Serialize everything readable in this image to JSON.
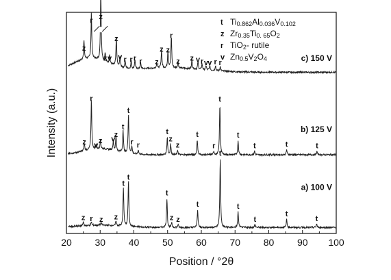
{
  "chart_data": {
    "type": "line",
    "xlabel": "Position / °2θ",
    "ylabel": "Intensity (a.u.)",
    "xlim": [
      20,
      100
    ],
    "xticks": [
      20,
      30,
      40,
      50,
      60,
      70,
      80,
      90,
      100
    ],
    "grid": false,
    "legend_position": "top-right",
    "legend": [
      {
        "key": "t",
        "parts": [
          [
            "Ti",
            ""
          ],
          [
            "0.862",
            "sub"
          ],
          [
            "Al",
            ""
          ],
          [
            "0.036",
            "sub"
          ],
          [
            "V",
            ""
          ],
          [
            "0.102",
            "sub"
          ]
        ]
      },
      {
        "key": "z",
        "parts": [
          [
            "Zr",
            ""
          ],
          [
            "0.35",
            "sub"
          ],
          [
            "Ti",
            ""
          ],
          [
            "0. 65",
            "sub"
          ],
          [
            "O",
            ""
          ],
          [
            "2",
            "sub"
          ]
        ]
      },
      {
        "key": "r",
        "parts": [
          [
            "TiO",
            ""
          ],
          [
            "2",
            "sub"
          ],
          [
            "- rutile",
            ""
          ]
        ]
      },
      {
        "key": "v",
        "parts": [
          [
            "Zn",
            ""
          ],
          [
            "0.5",
            "sub"
          ],
          [
            "V",
            ""
          ],
          [
            "2",
            "sub"
          ],
          [
            "O",
            ""
          ],
          [
            "4",
            "sub"
          ]
        ]
      }
    ],
    "series": [
      {
        "name": "c) 150 V",
        "baseline": 2.15,
        "peaks": [
          {
            "x": 25.2,
            "h": 0.25,
            "label": "z"
          },
          {
            "x": 27.4,
            "h": 0.62,
            "label": "r"
          },
          {
            "x": 30.2,
            "h": 0.95,
            "label": "z"
          },
          {
            "x": 31.5,
            "h": 0.12,
            "label": "z"
          },
          {
            "x": 32.8,
            "h": 0.12,
            "label": "v"
          },
          {
            "x": 34.8,
            "h": 0.38,
            "label": "z"
          },
          {
            "x": 35.9,
            "h": 0.14,
            "label": "v"
          },
          {
            "x": 37.4,
            "h": 0.1,
            "label": "r"
          },
          {
            "x": 39.2,
            "h": 0.1,
            "label": "r"
          },
          {
            "x": 40.3,
            "h": 0.12,
            "label": "r"
          },
          {
            "x": 42.0,
            "h": 0.08,
            "label": "r"
          },
          {
            "x": 46.8,
            "h": 0.07,
            "label": "z"
          },
          {
            "x": 48.2,
            "h": 0.24,
            "label": "z"
          },
          {
            "x": 50.1,
            "h": 0.23,
            "label": "z"
          },
          {
            "x": 51.1,
            "h": 0.42,
            "label": "r"
          },
          {
            "x": 53.1,
            "h": 0.08,
            "label": "z"
          },
          {
            "x": 57.2,
            "h": 0.12,
            "label": "z"
          },
          {
            "x": 59.0,
            "h": 0.1,
            "label": "v"
          },
          {
            "x": 60.2,
            "h": 0.08,
            "label": "r"
          },
          {
            "x": 61.4,
            "h": 0.06,
            "label": "v"
          },
          {
            "x": 62.5,
            "h": 0.06,
            "label": "v"
          },
          {
            "x": 64.2,
            "h": 0.07,
            "label": "r"
          },
          {
            "x": 65.6,
            "h": 0.06,
            "label": "r"
          }
        ]
      },
      {
        "name": "b) 125 V",
        "baseline": 1.05,
        "peaks": [
          {
            "x": 25.3,
            "h": 0.1,
            "label": "z"
          },
          {
            "x": 27.4,
            "h": 0.68,
            "label": "r"
          },
          {
            "x": 28.8,
            "h": 0.06,
            "label": "v"
          },
          {
            "x": 30.1,
            "h": 0.12,
            "label": "z"
          },
          {
            "x": 33.9,
            "h": 0.14,
            "label": "v"
          },
          {
            "x": 34.7,
            "h": 0.2,
            "label": "z"
          },
          {
            "x": 36.8,
            "h": 0.3,
            "label": "t"
          },
          {
            "x": 38.4,
            "h": 0.52,
            "label": "t"
          },
          {
            "x": 39.4,
            "h": 0.1,
            "label": "r"
          },
          {
            "x": 41.3,
            "h": 0.06,
            "label": "r"
          },
          {
            "x": 49.9,
            "h": 0.24,
            "label": "t"
          },
          {
            "x": 50.9,
            "h": 0.14,
            "label": "z"
          },
          {
            "x": 53.0,
            "h": 0.06,
            "label": "z"
          },
          {
            "x": 58.8,
            "h": 0.2,
            "label": "t"
          },
          {
            "x": 63.7,
            "h": 0.05,
            "label": "r"
          },
          {
            "x": 65.5,
            "h": 0.67,
            "label": "t"
          },
          {
            "x": 70.9,
            "h": 0.19,
            "label": "t"
          },
          {
            "x": 75.8,
            "h": 0.05,
            "label": "t"
          },
          {
            "x": 85.3,
            "h": 0.07,
            "label": "t"
          },
          {
            "x": 94.3,
            "h": 0.05,
            "label": "t"
          }
        ]
      },
      {
        "name": "a) 100 V",
        "baseline": 0.08,
        "peaks": [
          {
            "x": 25.0,
            "h": 0.06,
            "label": "z"
          },
          {
            "x": 27.4,
            "h": 0.05,
            "label": "r"
          },
          {
            "x": 30.3,
            "h": 0.04,
            "label": "z"
          },
          {
            "x": 34.7,
            "h": 0.07,
            "label": "z"
          },
          {
            "x": 36.9,
            "h": 0.52,
            "label": "t"
          },
          {
            "x": 38.4,
            "h": 0.6,
            "label": "t"
          },
          {
            "x": 49.8,
            "h": 0.39,
            "label": "t"
          },
          {
            "x": 51.2,
            "h": 0.06,
            "label": "z"
          },
          {
            "x": 53.1,
            "h": 0.04,
            "label": "z"
          },
          {
            "x": 58.9,
            "h": 0.24,
            "label": "t"
          },
          {
            "x": 65.6,
            "h": 0.92,
            "label": "t"
          },
          {
            "x": 70.9,
            "h": 0.21,
            "label": "t"
          },
          {
            "x": 75.9,
            "h": 0.04,
            "label": "t"
          },
          {
            "x": 85.3,
            "h": 0.11,
            "label": "t"
          },
          {
            "x": 94.2,
            "h": 0.05,
            "label": "t"
          }
        ]
      }
    ]
  }
}
